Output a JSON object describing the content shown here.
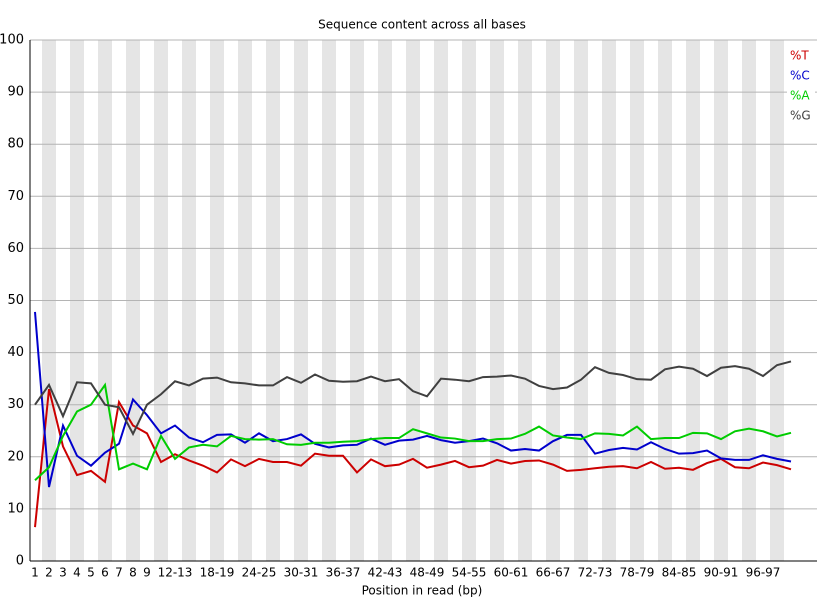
{
  "chart_data": {
    "type": "line",
    "title": "Sequence content across all bases",
    "x_label": "Position in read (bp)",
    "categories": [
      "1",
      "2",
      "3",
      "4",
      "5",
      "6",
      "7",
      "8",
      "9",
      null,
      "12-13",
      null,
      null,
      "18-19",
      null,
      null,
      "24-25",
      null,
      null,
      "30-31",
      null,
      null,
      "36-37",
      null,
      null,
      "42-43",
      null,
      null,
      "48-49",
      null,
      null,
      "54-55",
      null,
      null,
      "60-61",
      null,
      null,
      "66-67",
      null,
      null,
      "72-73",
      null,
      null,
      "78-79",
      null,
      null,
      "84-85",
      null,
      null,
      "90-91",
      null,
      null,
      "96-97",
      null,
      null
    ],
    "series": [
      {
        "name": "%T",
        "color": "#cc0000",
        "values": [
          6.5,
          33,
          22,
          16.5,
          17.3,
          15.2,
          30.5,
          26,
          24.5,
          19,
          20.5,
          19.3,
          18.3,
          17,
          19.5,
          18.2,
          19.6,
          19,
          19,
          18.3,
          20.6,
          20.2,
          20.2,
          17,
          19.5,
          18.2,
          18.5,
          19.6,
          17.9,
          18.5,
          19.2,
          18,
          18.3,
          19.4,
          18.7,
          19.2,
          19.3,
          18.5,
          17.3,
          17.5,
          17.8,
          18.1,
          18.2,
          17.8,
          19,
          17.7,
          17.9,
          17.5,
          18.8,
          19.6,
          18,
          17.8,
          18.9,
          18.4,
          17.6
        ]
      },
      {
        "name": "%C",
        "color": "#0000cc",
        "values": [
          47.8,
          14.2,
          26,
          20.2,
          18.3,
          20.8,
          22.5,
          31,
          28,
          24.5,
          26,
          23.7,
          22.8,
          24.2,
          24.3,
          22.7,
          24.5,
          23,
          23.4,
          24.3,
          22.5,
          21.8,
          22.2,
          22.3,
          23.5,
          22.3,
          23.1,
          23.3,
          24,
          23.2,
          22.7,
          23,
          23.5,
          22.6,
          21.2,
          21.5,
          21.2,
          23,
          24.2,
          24.2,
          20.6,
          21.3,
          21.7,
          21.4,
          22.8,
          21.5,
          20.6,
          20.7,
          21.2,
          19.7,
          19.4,
          19.4,
          20.3,
          19.6,
          19.1
        ]
      },
      {
        "name": "%A",
        "color": "#00cc00",
        "values": [
          15.5,
          18,
          24,
          28.7,
          30,
          33.8,
          17.6,
          18.7,
          17.6,
          24,
          19.6,
          21.8,
          22.3,
          22,
          24,
          23.4,
          23.3,
          23.4,
          22.4,
          22.3,
          22.7,
          22.7,
          22.9,
          23,
          23.4,
          23.6,
          23.6,
          25.3,
          24.5,
          23.7,
          23.5,
          23,
          23,
          23.4,
          23.5,
          24.4,
          25.8,
          24.1,
          23.7,
          23.4,
          24.5,
          24.4,
          24.1,
          25.8,
          23.4,
          23.6,
          23.6,
          24.6,
          24.5,
          23.4,
          24.9,
          25.4,
          24.9,
          23.9,
          24.6
        ]
      },
      {
        "name": "%G",
        "color": "#404040",
        "values": [
          30,
          33.8,
          27.8,
          34.3,
          34.1,
          30,
          29.5,
          24.4,
          30,
          32,
          34.5,
          33.7,
          35,
          35.2,
          34.3,
          34.1,
          33.7,
          33.7,
          35.3,
          34.2,
          35.8,
          34.6,
          34.4,
          34.5,
          35.4,
          34.5,
          34.9,
          32.6,
          31.6,
          35,
          34.8,
          34.5,
          35.3,
          35.4,
          35.6,
          35,
          33.6,
          33,
          33.3,
          34.8,
          37.2,
          36.1,
          35.7,
          34.9,
          34.8,
          36.8,
          37.3,
          36.9,
          35.5,
          37.1,
          37.4,
          36.9,
          35.5,
          37.6,
          38.3
        ]
      }
    ],
    "ylim": [
      0,
      100
    ],
    "yticks": [
      0,
      10,
      20,
      30,
      40,
      50,
      60,
      70,
      80,
      90,
      100
    ],
    "grid": true,
    "legend": "upper right"
  }
}
